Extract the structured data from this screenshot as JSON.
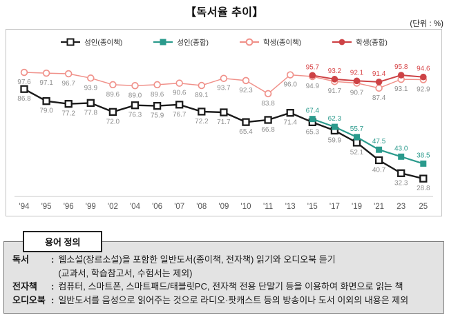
{
  "chart_data": {
    "type": "line",
    "title": "【독서율 추이】",
    "unit": "(단위 : %)",
    "grid": false,
    "legend_position": "top",
    "ylim": [
      20,
      100
    ],
    "categories": [
      "'94",
      "'95",
      "'96",
      "'99",
      "'02",
      "'04",
      "'06",
      "'07",
      "'08",
      "'09",
      "'10",
      "'11",
      "'13",
      "'15",
      "'17",
      "'19",
      "'21",
      "23",
      "25"
    ],
    "series": [
      {
        "name": "성인(종이책)",
        "color": "#1a1a1a",
        "label_color": "#8e8e8e",
        "marker": "square-open",
        "label_pos": "below",
        "values": [
          86.8,
          79.0,
          77.2,
          77.8,
          72.0,
          76.3,
          75.9,
          76.7,
          72.2,
          71.7,
          65.4,
          66.8,
          71.4,
          65.3,
          59.9,
          52.1,
          40.7,
          32.3,
          28.8
        ]
      },
      {
        "name": "성인(종합)",
        "color": "#2a9a8c",
        "label_color": "#2a9a8c",
        "marker": "square-filled",
        "label_pos": "above",
        "values": [
          null,
          null,
          null,
          null,
          null,
          null,
          null,
          null,
          null,
          null,
          null,
          null,
          null,
          67.4,
          62.3,
          55.7,
          47.5,
          43.0,
          38.5
        ]
      },
      {
        "name": "학생(종이책)",
        "color": "#f0918a",
        "label_color": "#8e8e8e",
        "marker": "circle-open",
        "label_pos": "below",
        "values": [
          97.6,
          97.1,
          96.7,
          93.9,
          89.6,
          89.0,
          89.6,
          90.6,
          89.1,
          93.7,
          92.3,
          83.8,
          96.0,
          94.9,
          91.7,
          90.7,
          87.4,
          93.1,
          92.9
        ]
      },
      {
        "name": "학생(종합)",
        "color": "#cd4245",
        "label_color": "#d8474a",
        "marker": "circle-filled",
        "label_pos": "above",
        "values": [
          null,
          null,
          null,
          null,
          null,
          null,
          null,
          null,
          null,
          null,
          null,
          null,
          null,
          95.7,
          93.2,
          92.1,
          91.4,
          95.8,
          94.6
        ]
      }
    ]
  },
  "definitions": {
    "tab_label": "용어 정의",
    "items": [
      {
        "term": "독서",
        "lines": [
          "웹소설(장르소설)을 포함한 일반도서(종이책, 전자책) 읽기와 오디오북 듣기",
          "(교과서, 학습참고서, 수험서는 제외)"
        ]
      },
      {
        "term": "전자책",
        "lines": [
          "컴퓨터, 스마트폰, 스마트패드/태블릿PC, 전자책 전용 단말기 등을 이용하여 화면으로 읽는 책"
        ]
      },
      {
        "term": "오디오북",
        "lines": [
          "일반도서를 음성으로 읽어주는 것으로 라디오·팟캐스트 등의 방송이나 도서 이외의 내용은 제외"
        ]
      }
    ]
  }
}
